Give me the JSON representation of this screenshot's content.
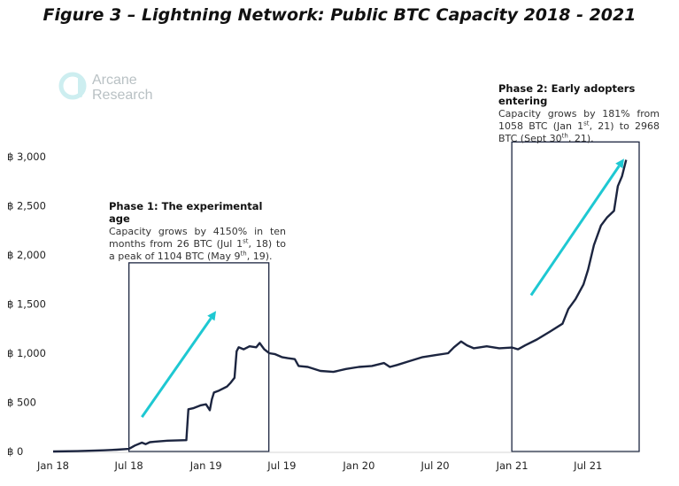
{
  "title": "Figure 3 – Lightning Network: Public BTC Capacity 2018 - 2021",
  "logo": {
    "line1": "Arcane",
    "line2": "Research"
  },
  "colors": {
    "line": "#1c2540",
    "arrow": "#1ec8d2",
    "box": "#1c2540"
  },
  "annotations": {
    "phase1": {
      "title": "Phase 1: The experimental age",
      "p1": "Capacity grows by 4150% in ten months from 26 BTC (Jul 1",
      "sup1": "st",
      "p2": ", 18) to a peak of 1104 BTC (May 9",
      "sup2": "th",
      "p3": ", 19)."
    },
    "phase2": {
      "title": "Phase 2: Early adopters entering",
      "p1": "Capacity grows by 181% from 1058 BTC (Jan 1",
      "sup1": "st",
      "p2": ", 21) to 2968 BTC (Sept 30",
      "sup2": "th",
      "p3": ", 21)."
    }
  },
  "chart_data": {
    "type": "line",
    "title": "Figure 3 – Lightning Network: Public BTC Capacity 2018 - 2021",
    "xlabel": "",
    "ylabel": "",
    "x_ticks": [
      "Jan 18",
      "Jul 18",
      "Jan 19",
      "Jul 19",
      "Jan 20",
      "Jul 20",
      "Jan 21",
      "Jul 21"
    ],
    "y_ticks": [
      "฿ 0",
      "฿ 500",
      "฿ 1,000",
      "฿ 1,500",
      "฿ 2,000",
      "฿ 2,500",
      "฿ 3,000"
    ],
    "ylim": [
      0,
      3000
    ],
    "xlim": [
      "2018-01-01",
      "2021-10-31"
    ],
    "grid": false,
    "series": [
      {
        "points": [
          [
            "2018-01-01",
            0
          ],
          [
            "2018-03-01",
            4
          ],
          [
            "2018-05-01",
            12
          ],
          [
            "2018-06-01",
            18
          ],
          [
            "2018-07-01",
            26
          ],
          [
            "2018-07-15",
            60
          ],
          [
            "2018-08-01",
            90
          ],
          [
            "2018-08-10",
            75
          ],
          [
            "2018-08-20",
            95
          ],
          [
            "2018-09-01",
            100
          ],
          [
            "2018-10-01",
            110
          ],
          [
            "2018-11-15",
            115
          ],
          [
            "2018-11-20",
            430
          ],
          [
            "2018-12-01",
            440
          ],
          [
            "2018-12-20",
            470
          ],
          [
            "2019-01-01",
            480
          ],
          [
            "2019-01-10",
            420
          ],
          [
            "2019-01-15",
            530
          ],
          [
            "2019-01-20",
            600
          ],
          [
            "2019-02-01",
            620
          ],
          [
            "2019-02-20",
            660
          ],
          [
            "2019-03-01",
            700
          ],
          [
            "2019-03-10",
            750
          ],
          [
            "2019-03-15",
            1020
          ],
          [
            "2019-03-20",
            1060
          ],
          [
            "2019-04-01",
            1040
          ],
          [
            "2019-04-15",
            1070
          ],
          [
            "2019-05-01",
            1060
          ],
          [
            "2019-05-09",
            1104
          ],
          [
            "2019-05-20",
            1040
          ],
          [
            "2019-06-01",
            1000
          ],
          [
            "2019-06-15",
            990
          ],
          [
            "2019-07-01",
            960
          ],
          [
            "2019-07-15",
            950
          ],
          [
            "2019-08-01",
            940
          ],
          [
            "2019-08-10",
            870
          ],
          [
            "2019-09-01",
            860
          ],
          [
            "2019-10-01",
            820
          ],
          [
            "2019-11-01",
            810
          ],
          [
            "2019-12-01",
            840
          ],
          [
            "2020-01-01",
            860
          ],
          [
            "2020-02-01",
            870
          ],
          [
            "2020-03-01",
            900
          ],
          [
            "2020-03-15",
            860
          ],
          [
            "2020-04-01",
            880
          ],
          [
            "2020-05-01",
            920
          ],
          [
            "2020-06-01",
            960
          ],
          [
            "2020-07-01",
            980
          ],
          [
            "2020-08-01",
            1000
          ],
          [
            "2020-08-15",
            1060
          ],
          [
            "2020-09-01",
            1120
          ],
          [
            "2020-09-15",
            1080
          ],
          [
            "2020-10-01",
            1050
          ],
          [
            "2020-11-01",
            1070
          ],
          [
            "2020-12-01",
            1050
          ],
          [
            "2021-01-01",
            1058
          ],
          [
            "2021-01-15",
            1040
          ],
          [
            "2021-02-01",
            1080
          ],
          [
            "2021-03-01",
            1140
          ],
          [
            "2021-04-01",
            1220
          ],
          [
            "2021-05-01",
            1300
          ],
          [
            "2021-05-15",
            1450
          ],
          [
            "2021-06-01",
            1550
          ],
          [
            "2021-06-20",
            1700
          ],
          [
            "2021-07-01",
            1850
          ],
          [
            "2021-07-15",
            2100
          ],
          [
            "2021-08-01",
            2300
          ],
          [
            "2021-08-15",
            2380
          ],
          [
            "2021-09-01",
            2450
          ],
          [
            "2021-09-10",
            2700
          ],
          [
            "2021-09-20",
            2800
          ],
          [
            "2021-09-30",
            2968
          ]
        ]
      }
    ],
    "annotation_boxes": [
      {
        "x_start": "2018-07-01",
        "x_end": "2019-05-31",
        "y_start": 0,
        "y_end": 1920
      },
      {
        "x_start": "2020-12-31",
        "x_end": "2021-10-31",
        "y_start": 0,
        "y_end": 3150
      }
    ],
    "trend_arrows": [
      {
        "from": [
          "2018-08-01",
          350
        ],
        "to": [
          "2019-01-25",
          1430
        ]
      },
      {
        "from": [
          "2021-02-15",
          1590
        ],
        "to": [
          "2021-09-25",
          2980
        ]
      }
    ]
  }
}
